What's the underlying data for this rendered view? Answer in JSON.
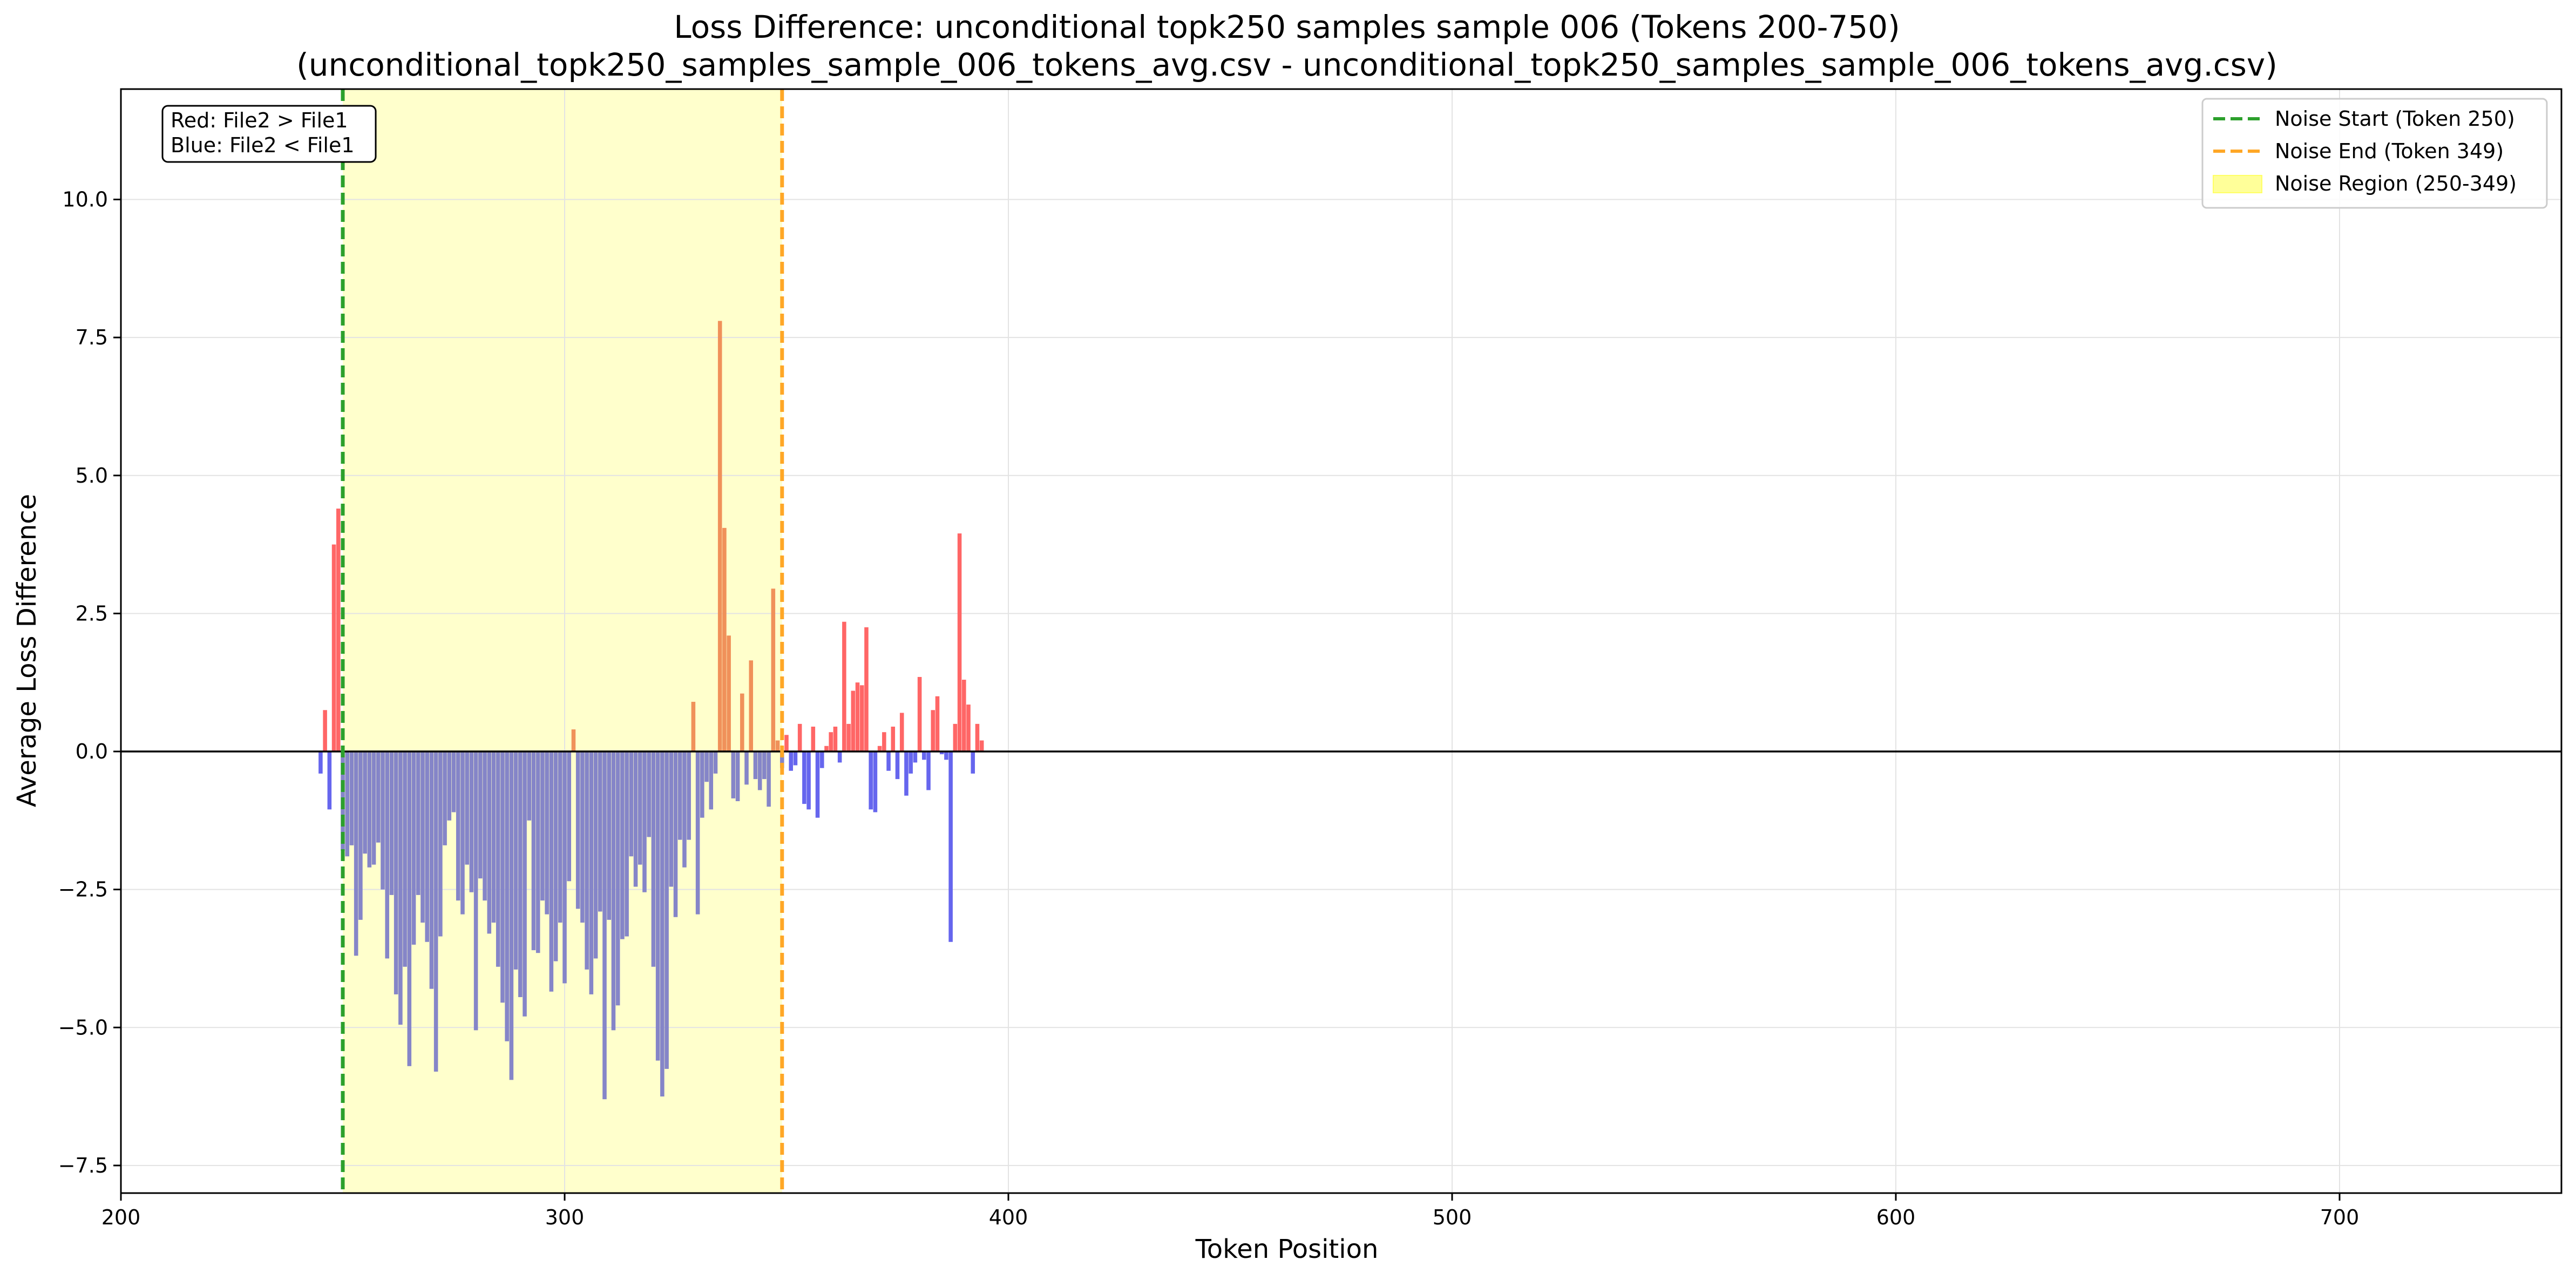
{
  "chart_data": {
    "type": "bar",
    "title_line1": "Loss Difference: unconditional topk250 samples sample 006 (Tokens 200-750)",
    "title_line2": "(unconditional_topk250_samples_sample_006_tokens_avg.csv - unconditional_topk250_samples_sample_006_tokens_avg.csv)",
    "xlabel": "Token Position",
    "ylabel": "Average Loss Difference",
    "xlim": [
      200,
      750
    ],
    "ylim": [
      -8.0,
      12.0
    ],
    "x_ticks": [
      200,
      300,
      400,
      500,
      600,
      700
    ],
    "y_ticks": [
      -7.5,
      -5.0,
      -2.5,
      0.0,
      2.5,
      5.0,
      7.5,
      10.0
    ],
    "y_tick_labels": [
      "−7.5",
      "−5.0",
      "−2.5",
      "0.0",
      "2.5",
      "5.0",
      "7.5",
      "10.0"
    ],
    "grid": true,
    "noise_start": 250,
    "noise_end": 349,
    "legend": [
      {
        "label": "Noise Start (Token 250)",
        "style": "dashed",
        "color": "#2ca02c"
      },
      {
        "label": "Noise End (Token 349)",
        "style": "dashed",
        "color": "#ffa726"
      },
      {
        "label": "Noise Region (250-349)",
        "style": "fill",
        "color": "#ffff99"
      }
    ],
    "legend_position": "top-right",
    "annotation_lines": [
      "Red: File2 > File1",
      "Blue: File2 < File1"
    ],
    "colors": {
      "positive": "#ff6666",
      "negative": "#6666ee",
      "positive_in_noise": "#f0915a",
      "negative_in_noise": "#8585c8",
      "noise_region": "#ffffcc",
      "noise_start_line": "#2ca02c",
      "noise_end_line": "#ffa726"
    },
    "x_start": 245,
    "values": [
      -0.4,
      0.75,
      -1.05,
      3.75,
      4.4,
      -1.8,
      -1.9,
      -1.7,
      -3.7,
      -3.05,
      -1.85,
      -2.1,
      -2.05,
      -1.65,
      -2.5,
      -3.75,
      -2.6,
      -4.4,
      -4.95,
      -3.9,
      -5.7,
      -3.5,
      -2.6,
      -3.1,
      -3.45,
      -4.3,
      -5.8,
      -3.35,
      -1.7,
      -1.25,
      -1.1,
      -2.7,
      -2.95,
      -2.05,
      -2.55,
      -5.05,
      -2.3,
      -2.7,
      -3.3,
      -3.1,
      -3.9,
      -4.55,
      -5.25,
      -5.95,
      -3.95,
      -4.45,
      -4.8,
      -1.25,
      -3.6,
      -3.65,
      -2.7,
      -2.95,
      -4.35,
      -3.8,
      -3.1,
      -4.2,
      -2.35,
      0.4,
      -2.85,
      -3.1,
      -3.95,
      -4.4,
      -3.75,
      -2.9,
      -6.3,
      -3.05,
      -5.05,
      -4.6,
      -3.4,
      -3.35,
      -1.9,
      -2.45,
      -2.05,
      -2.55,
      -1.55,
      -3.9,
      -5.6,
      -6.25,
      -5.75,
      -2.45,
      -3.0,
      -1.6,
      -2.1,
      -1.6,
      0.9,
      -2.95,
      -1.2,
      -0.55,
      -1.05,
      -0.4,
      7.8,
      4.05,
      2.1,
      -0.85,
      -0.9,
      1.05,
      -0.6,
      1.65,
      -0.5,
      -0.7,
      -0.5,
      -1.0,
      2.95,
      0.2,
      -0.3,
      0.3,
      -0.35,
      -0.25,
      0.5,
      -0.95,
      -1.05,
      0.45,
      -1.2,
      -0.3,
      0.1,
      0.35,
      0.45,
      -0.2,
      2.35,
      0.5,
      1.1,
      1.25,
      1.2,
      2.25,
      -1.05,
      -1.1,
      0.1,
      0.35,
      -0.35,
      0.45,
      -0.5,
      0.7,
      -0.8,
      -0.4,
      -0.2,
      1.35,
      -0.15,
      -0.7,
      0.75,
      1.0,
      -0.05,
      -0.15,
      -3.45,
      0.5,
      3.95,
      1.3,
      0.85,
      -0.4,
      0.5,
      0.2
    ]
  }
}
